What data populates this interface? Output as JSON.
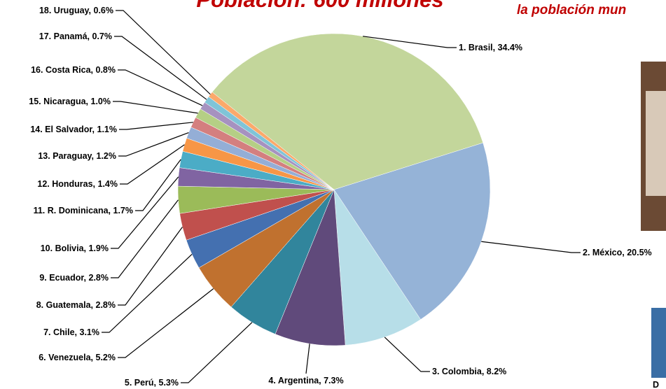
{
  "chart_data": {
    "type": "pie",
    "title": "Población: 600 millones",
    "subtitle": "la población mun",
    "side_text": "D",
    "values": [
      34.4,
      20.5,
      8.2,
      7.3,
      5.3,
      5.2,
      3.1,
      2.8,
      2.8,
      1.9,
      1.7,
      1.4,
      1.2,
      1.1,
      1.0,
      0.8,
      0.7,
      0.6
    ],
    "value_labels": [
      "1. Brasil, 34.4%",
      "2. México, 20.5%",
      "3. Colombia, 8.2%",
      "4. Argentina, 7.3%",
      "5. Perú, 5.3%",
      "6. Venezuela, 5.2%",
      "7. Chile, 3.1%",
      "8. Guatemala, 2.8%",
      "9. Ecuador, 2.8%",
      "10. Bolivia, 1.9%",
      "11. R. Dominicana, 1.7%",
      "12. Honduras, 1.4%",
      "13. Paraguay, 1.2%",
      "14. El Salvador, 1.1%",
      "15. Nicaragua, 1.0%",
      "16. Costa Rica, 0.8%",
      "17. Panamá, 0.7%",
      "18. Uruguay, 0.6%"
    ],
    "colors": [
      "#c3d69b",
      "#95b3d7",
      "#b7dee8",
      "#604a7b",
      "#31859c",
      "#c0712f",
      "#4470b0",
      "#c0504d",
      "#9bbb59",
      "#8064a2",
      "#4bacc6",
      "#f79646",
      "#94aed6",
      "#d47f7f",
      "#b5cf85",
      "#a692c0",
      "#7fc4d8",
      "#fba96b"
    ]
  }
}
